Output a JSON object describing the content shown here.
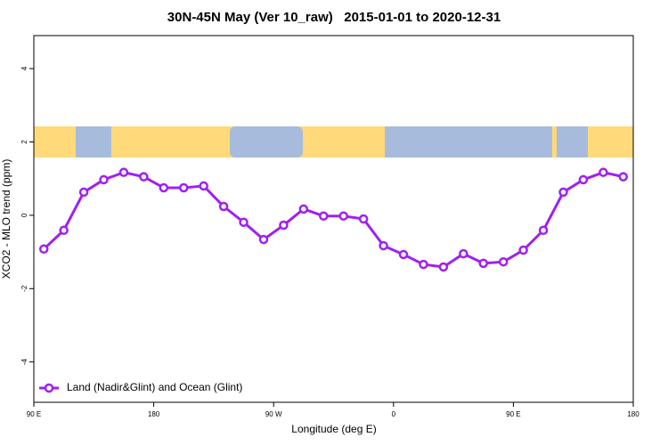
{
  "chart_data": {
    "type": "line",
    "title": "30N-45N May (Ver 10_raw)   2015-01-01 to 2020-12-31",
    "x_label": "Longitude (deg E)",
    "y_label": "XCO2 - MLO trend (ppm)",
    "x": [
      97.5,
      112.5,
      127.5,
      142.5,
      157.5,
      172.5,
      187.5,
      202.5,
      217.5,
      232.5,
      247.5,
      262.5,
      277.5,
      292.5,
      307.5,
      322.5,
      337.5,
      352.5,
      367.5,
      382.5,
      397.5,
      412.5,
      427.5,
      442.5,
      457.5,
      472.5,
      487.5,
      502.5,
      517.5,
      532.5
    ],
    "series": [
      {
        "name": "Land (Nadir&Glint) and Ocean (Glint)",
        "color": "#a020f0",
        "values": [
          -0.92,
          -0.41,
          0.63,
          0.97,
          1.17,
          1.05,
          0.75,
          0.75,
          0.8,
          0.24,
          -0.19,
          -0.66,
          -0.27,
          0.17,
          -0.02,
          -0.02,
          -0.1,
          -0.83,
          -1.07,
          -1.34,
          -1.41,
          -1.05,
          -1.31,
          -1.27,
          -0.95,
          -0.41,
          0.63,
          0.97,
          1.17,
          1.05
        ]
      }
    ],
    "xlim": [
      90,
      540
    ],
    "xticks": [
      {
        "value": 90,
        "label": "90 E"
      },
      {
        "value": 180,
        "label": "180"
      },
      {
        "value": 270,
        "label": "90 W"
      },
      {
        "value": 360,
        "label": "0"
      },
      {
        "value": 450,
        "label": "90 E"
      },
      {
        "value": 540,
        "label": "180"
      }
    ],
    "ylim": [
      -5.1,
      4.9
    ],
    "yticks": [
      -4,
      -2,
      0,
      2,
      4
    ],
    "legend": "bottom-left"
  }
}
